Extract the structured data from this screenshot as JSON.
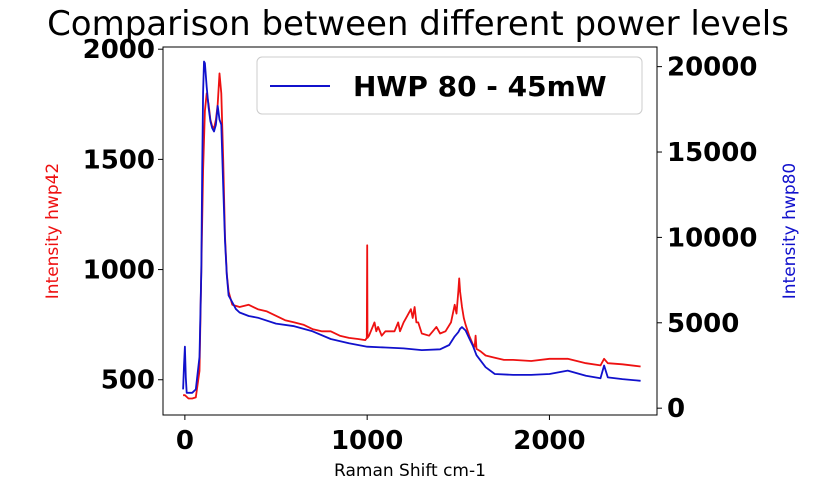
{
  "chart_data": {
    "type": "line",
    "title": "Comparison between different power levels",
    "xlabel": "Raman Shift cm-1",
    "ylabel_left": "Intensity hwp42",
    "ylabel_right": "Intensity hwp80",
    "xlim": [
      -120,
      2590
    ],
    "ylim_left": [
      340,
      2010
    ],
    "ylim_right": [
      -400,
      21150
    ],
    "x_ticks": [
      0,
      1000,
      2000
    ],
    "y_ticks_left": [
      500,
      1000,
      1500,
      2000
    ],
    "y_ticks_right": [
      0,
      5000,
      10000,
      15000,
      20000
    ],
    "legend": {
      "position": "top-right",
      "entries": [
        "HWP 80 - 45mW"
      ]
    },
    "grid": false,
    "series": [
      {
        "axis": "left",
        "color": "#ee1111",
        "x": [
          -10,
          0,
          20,
          40,
          60,
          80,
          100,
          110,
          120,
          130,
          140,
          150,
          160,
          170,
          180,
          190,
          200,
          210,
          220,
          230,
          240,
          260,
          280,
          300,
          350,
          400,
          450,
          500,
          550,
          600,
          650,
          700,
          750,
          800,
          850,
          900,
          950,
          990,
          998,
          1000,
          1002,
          1010,
          1040,
          1050,
          1060,
          1080,
          1100,
          1120,
          1150,
          1170,
          1180,
          1200,
          1220,
          1240,
          1250,
          1260,
          1270,
          1280,
          1300,
          1340,
          1360,
          1380,
          1400,
          1430,
          1460,
          1480,
          1490,
          1500,
          1505,
          1510,
          1520,
          1530,
          1540,
          1560,
          1580,
          1590,
          1595,
          1600,
          1620,
          1650,
          1700,
          1750,
          1800,
          1900,
          2000,
          2100,
          2200,
          2280,
          2300,
          2320,
          2400,
          2500
        ],
        "y": [
          430,
          430,
          415,
          415,
          420,
          540,
          1450,
          1720,
          1800,
          1750,
          1680,
          1650,
          1640,
          1680,
          1750,
          1890,
          1800,
          1500,
          1150,
          980,
          900,
          840,
          835,
          830,
          840,
          820,
          810,
          790,
          770,
          760,
          750,
          730,
          720,
          720,
          700,
          690,
          685,
          680,
          690,
          1110,
          690,
          700,
          760,
          720,
          740,
          700,
          720,
          720,
          720,
          760,
          720,
          760,
          790,
          820,
          780,
          830,
          760,
          760,
          710,
          700,
          720,
          740,
          710,
          720,
          760,
          840,
          800,
          900,
          960,
          900,
          830,
          780,
          750,
          700,
          660,
          650,
          700,
          640,
          630,
          610,
          600,
          590,
          590,
          585,
          595,
          595,
          575,
          565,
          595,
          575,
          570,
          560
        ]
      },
      {
        "axis": "right",
        "name": "HWP 80 - 45mW",
        "color": "#1111cc",
        "x": [
          -10,
          -5,
          0,
          5,
          10,
          20,
          40,
          60,
          80,
          90,
          95,
          100,
          105,
          110,
          120,
          130,
          140,
          150,
          160,
          170,
          180,
          190,
          200,
          210,
          220,
          230,
          240,
          260,
          280,
          300,
          350,
          400,
          500,
          600,
          700,
          800,
          900,
          1000,
          1100,
          1200,
          1300,
          1400,
          1450,
          1480,
          1500,
          1510,
          1520,
          1540,
          1560,
          1580,
          1600,
          1650,
          1700,
          1800,
          1900,
          2000,
          2100,
          2200,
          2280,
          2300,
          2320,
          2400,
          2500
        ],
        "y": [
          1100,
          2500,
          3600,
          1800,
          900,
          900,
          900,
          1100,
          3000,
          8000,
          14000,
          18500,
          20300,
          20200,
          18800,
          17600,
          16800,
          16400,
          16200,
          16600,
          17700,
          16900,
          16600,
          13000,
          9800,
          7800,
          6600,
          6200,
          5800,
          5600,
          5400,
          5300,
          4950,
          4800,
          4500,
          4050,
          3800,
          3600,
          3550,
          3500,
          3400,
          3450,
          3700,
          4200,
          4450,
          4650,
          4750,
          4550,
          4100,
          3650,
          3100,
          2400,
          2000,
          1950,
          1950,
          2000,
          2200,
          1900,
          1750,
          2500,
          1800,
          1700,
          1600
        ]
      }
    ]
  }
}
